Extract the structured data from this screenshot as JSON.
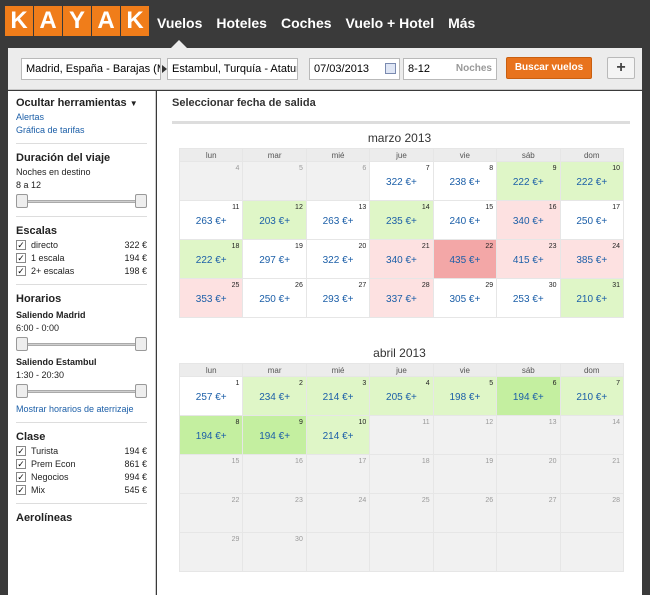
{
  "header": {
    "logo": [
      "K",
      "A",
      "Y",
      "A",
      "K"
    ],
    "nav": [
      "Vuelos",
      "Hoteles",
      "Coches",
      "Vuelo + Hotel",
      "Más"
    ]
  },
  "search": {
    "origin": "Madrid, España - Barajas (M",
    "destination": "Estambul, Turquía - Ataturk",
    "date": "07/03/2013",
    "nights_value": "8-12",
    "nights_label": "Noches",
    "submit": "Buscar vuelos",
    "add": "+"
  },
  "sidebar": {
    "hide_tools": "Ocultar herramientas",
    "alerts": "Alertas",
    "chart": "Gráfica de tarifas",
    "duration": {
      "title": "Duración del viaje",
      "sub": "Noches en destino",
      "range": "8 a 12"
    },
    "stops": {
      "title": "Escalas",
      "items": [
        {
          "label": "directo",
          "value": "322 €"
        },
        {
          "label": "1 escala",
          "value": "194 €"
        },
        {
          "label": "2+ escalas",
          "value": "198 €"
        }
      ]
    },
    "times": {
      "title": "Horarios",
      "leave1": "Saliendo Madrid",
      "range1": "6:00 - 0:00",
      "leave2": "Saliendo Estambul",
      "range2": "1:30 - 20:30",
      "show_landing": "Mostrar horarios de aterrizaje"
    },
    "cabin": {
      "title": "Clase",
      "items": [
        {
          "label": "Turista",
          "value": "194 €"
        },
        {
          "label": "Prem Econ",
          "value": "861 €"
        },
        {
          "label": "Negocios",
          "value": "994 €"
        },
        {
          "label": "Mix",
          "value": "545 €"
        }
      ]
    },
    "airlines": {
      "title": "Aerolíneas"
    }
  },
  "main": {
    "title": "Seleccionar fecha de salida",
    "weekdays": [
      "lun",
      "mar",
      "mié",
      "jue",
      "vie",
      "sáb",
      "dom"
    ],
    "months": [
      {
        "name": "marzo 2013",
        "rows": [
          [
            {
              "d": "4",
              "p": "",
              "s": "empty"
            },
            {
              "d": "5",
              "p": "",
              "s": "empty"
            },
            {
              "d": "6",
              "p": "",
              "s": "empty"
            },
            {
              "d": "7",
              "p": "322 €+",
              "s": "white"
            },
            {
              "d": "8",
              "p": "238 €+",
              "s": "white"
            },
            {
              "d": "9",
              "p": "222 €+",
              "s": "green"
            },
            {
              "d": "10",
              "p": "222 €+",
              "s": "green"
            }
          ],
          [
            {
              "d": "11",
              "p": "263 €+",
              "s": "white"
            },
            {
              "d": "12",
              "p": "203 €+",
              "s": "green"
            },
            {
              "d": "13",
              "p": "263 €+",
              "s": "white"
            },
            {
              "d": "14",
              "p": "235 €+",
              "s": "green"
            },
            {
              "d": "15",
              "p": "240 €+",
              "s": "white"
            },
            {
              "d": "16",
              "p": "340 €+",
              "s": "pink"
            },
            {
              "d": "17",
              "p": "250 €+",
              "s": "white"
            }
          ],
          [
            {
              "d": "18",
              "p": "222 €+",
              "s": "green"
            },
            {
              "d": "19",
              "p": "297 €+",
              "s": "white"
            },
            {
              "d": "20",
              "p": "322 €+",
              "s": "white"
            },
            {
              "d": "21",
              "p": "340 €+",
              "s": "pink"
            },
            {
              "d": "22",
              "p": "435 €+",
              "s": "red"
            },
            {
              "d": "23",
              "p": "415 €+",
              "s": "pink"
            },
            {
              "d": "24",
              "p": "385 €+",
              "s": "pink"
            }
          ],
          [
            {
              "d": "25",
              "p": "353 €+",
              "s": "pink"
            },
            {
              "d": "26",
              "p": "250 €+",
              "s": "white"
            },
            {
              "d": "27",
              "p": "293 €+",
              "s": "white"
            },
            {
              "d": "28",
              "p": "337 €+",
              "s": "pink"
            },
            {
              "d": "29",
              "p": "305 €+",
              "s": "white"
            },
            {
              "d": "30",
              "p": "253 €+",
              "s": "white"
            },
            {
              "d": "31",
              "p": "210 €+",
              "s": "green"
            }
          ]
        ]
      },
      {
        "name": "abril 2013",
        "rows": [
          [
            {
              "d": "1",
              "p": "257 €+",
              "s": "white"
            },
            {
              "d": "2",
              "p": "234 €+",
              "s": "green"
            },
            {
              "d": "3",
              "p": "214 €+",
              "s": "green"
            },
            {
              "d": "4",
              "p": "205 €+",
              "s": "green"
            },
            {
              "d": "5",
              "p": "198 €+",
              "s": "green"
            },
            {
              "d": "6",
              "p": "194 €+",
              "s": "dgreen"
            },
            {
              "d": "7",
              "p": "210 €+",
              "s": "green"
            }
          ],
          [
            {
              "d": "8",
              "p": "194 €+",
              "s": "dgreen"
            },
            {
              "d": "9",
              "p": "194 €+",
              "s": "dgreen"
            },
            {
              "d": "10",
              "p": "214 €+",
              "s": "green"
            },
            {
              "d": "11",
              "p": "",
              "s": "empty"
            },
            {
              "d": "12",
              "p": "",
              "s": "empty"
            },
            {
              "d": "13",
              "p": "",
              "s": "empty"
            },
            {
              "d": "14",
              "p": "",
              "s": "empty"
            }
          ],
          [
            {
              "d": "15",
              "p": "",
              "s": "empty"
            },
            {
              "d": "16",
              "p": "",
              "s": "empty"
            },
            {
              "d": "17",
              "p": "",
              "s": "empty"
            },
            {
              "d": "18",
              "p": "",
              "s": "empty"
            },
            {
              "d": "19",
              "p": "",
              "s": "empty"
            },
            {
              "d": "20",
              "p": "",
              "s": "empty"
            },
            {
              "d": "21",
              "p": "",
              "s": "empty"
            }
          ],
          [
            {
              "d": "22",
              "p": "",
              "s": "empty"
            },
            {
              "d": "23",
              "p": "",
              "s": "empty"
            },
            {
              "d": "24",
              "p": "",
              "s": "empty"
            },
            {
              "d": "25",
              "p": "",
              "s": "empty"
            },
            {
              "d": "26",
              "p": "",
              "s": "empty"
            },
            {
              "d": "27",
              "p": "",
              "s": "empty"
            },
            {
              "d": "28",
              "p": "",
              "s": "empty"
            }
          ],
          [
            {
              "d": "29",
              "p": "",
              "s": "empty"
            },
            {
              "d": "30",
              "p": "",
              "s": "empty"
            },
            {
              "d": "",
              "p": "",
              "s": "empty"
            },
            {
              "d": "",
              "p": "",
              "s": "empty"
            },
            {
              "d": "",
              "p": "",
              "s": "empty"
            },
            {
              "d": "",
              "p": "",
              "s": "empty"
            },
            {
              "d": "",
              "p": "",
              "s": "empty"
            }
          ]
        ]
      }
    ]
  },
  "colors": {
    "brand": "#f07d1a",
    "cheap": "#c4efa0",
    "low": "#dff6c7",
    "high": "#fde1e1",
    "highest": "#f3a7a7",
    "link": "#1c5fa8"
  }
}
